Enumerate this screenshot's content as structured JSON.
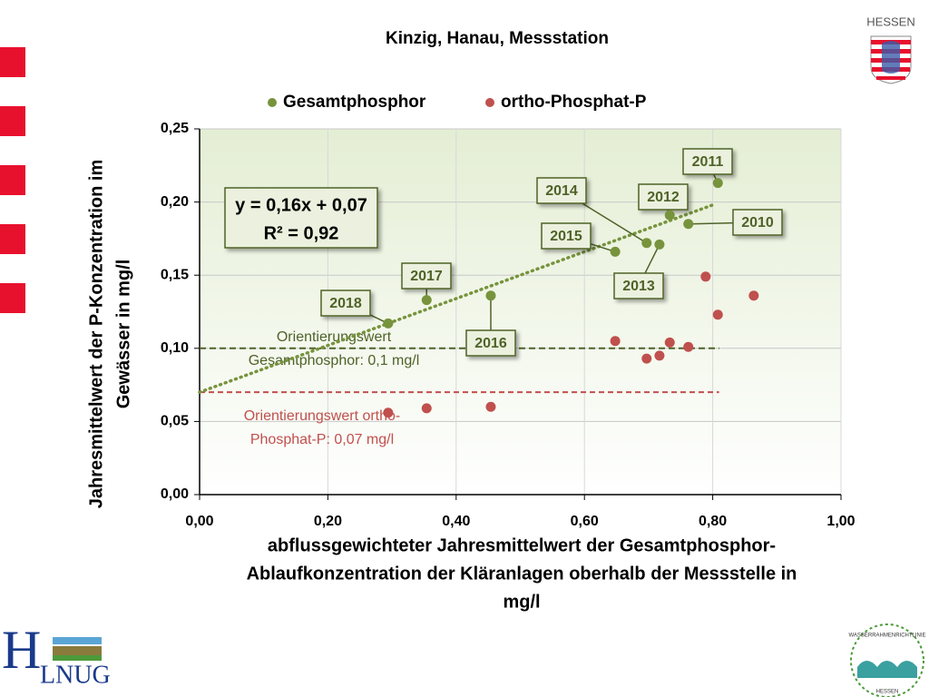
{
  "chart_data": {
    "type": "scatter",
    "title": "Kinzig, Hanau, Messstation",
    "x_label": [
      "abflussgewichteter Jahresmittelwert der Gesamtphosphor-",
      "Ablaufkonzentration der Kläranlagen oberhalb der Messstelle  in",
      "mg/l"
    ],
    "y_label": [
      "Jahresmittelwert der P-Konzentration im",
      "Gewässer in mg/l"
    ],
    "xlim": [
      0,
      1
    ],
    "ylim": [
      0,
      0.25
    ],
    "xticks": [
      {
        "value": 0,
        "label": "0,00"
      },
      {
        "value": 0.2,
        "label": "0,20"
      },
      {
        "value": 0.4,
        "label": "0,40"
      },
      {
        "value": 0.6,
        "label": "0,60"
      },
      {
        "value": 0.8,
        "label": "0,80"
      },
      {
        "value": 1,
        "label": "1,00"
      }
    ],
    "yticks": [
      {
        "value": 0,
        "label": "0,00"
      },
      {
        "value": 0.05,
        "label": "0,05"
      },
      {
        "value": 0.1,
        "label": "0,10"
      },
      {
        "value": 0.15,
        "label": "0,15"
      },
      {
        "value": 0.2,
        "label": "0,20"
      },
      {
        "value": 0.25,
        "label": "0,25"
      }
    ],
    "grid": true,
    "series": [
      {
        "name": "Gesamtphosphor",
        "color": "#77933c",
        "x": [
          0.294,
          0.354,
          0.454,
          0.648,
          0.697,
          0.717,
          0.733,
          0.762,
          0.808
        ],
        "values": [
          0.117,
          0.133,
          0.136,
          0.166,
          0.172,
          0.171,
          0.191,
          0.185,
          0.213
        ],
        "labels": [
          "2018",
          "2017",
          "2016",
          "2015",
          "2014",
          "2013",
          "2012",
          "2010",
          "2011"
        ]
      },
      {
        "name": "ortho-Phosphat-P",
        "color": "#c0504d",
        "x": [
          0.294,
          0.354,
          0.454,
          0.648,
          0.697,
          0.717,
          0.733,
          0.762,
          0.789,
          0.808,
          0.864
        ],
        "values": [
          0.056,
          0.059,
          0.06,
          0.105,
          0.093,
          0.095,
          0.104,
          0.101,
          0.149,
          0.123,
          0.136
        ]
      }
    ],
    "trendline": {
      "slope": 0.16,
      "intercept": 0.07,
      "x_end": 0.8,
      "color": "#77933c",
      "label": [
        "y = 0,16x + 0,07",
        "R² = 0,92"
      ]
    },
    "reference_lines": [
      {
        "value": 0.1,
        "x_end": 0.81,
        "color": "#4f6228",
        "label": [
          "Orientierungswert",
          "Gesamtphosphor: 0,1 mg/l"
        ]
      },
      {
        "value": 0.07,
        "x_end": 0.81,
        "color": "#c0504d",
        "label": [
          "Orientierungswert  ortho-",
          "Phosphat-P: 0,07 mg/l"
        ]
      }
    ]
  },
  "slide": {
    "logo_hessen": "HESSEN",
    "logo_hlnug": [
      "H",
      "LNUG"
    ],
    "logo_wrrl": [
      "WASSERRAHMENRICHTLINIE",
      "HESSEN"
    ]
  }
}
